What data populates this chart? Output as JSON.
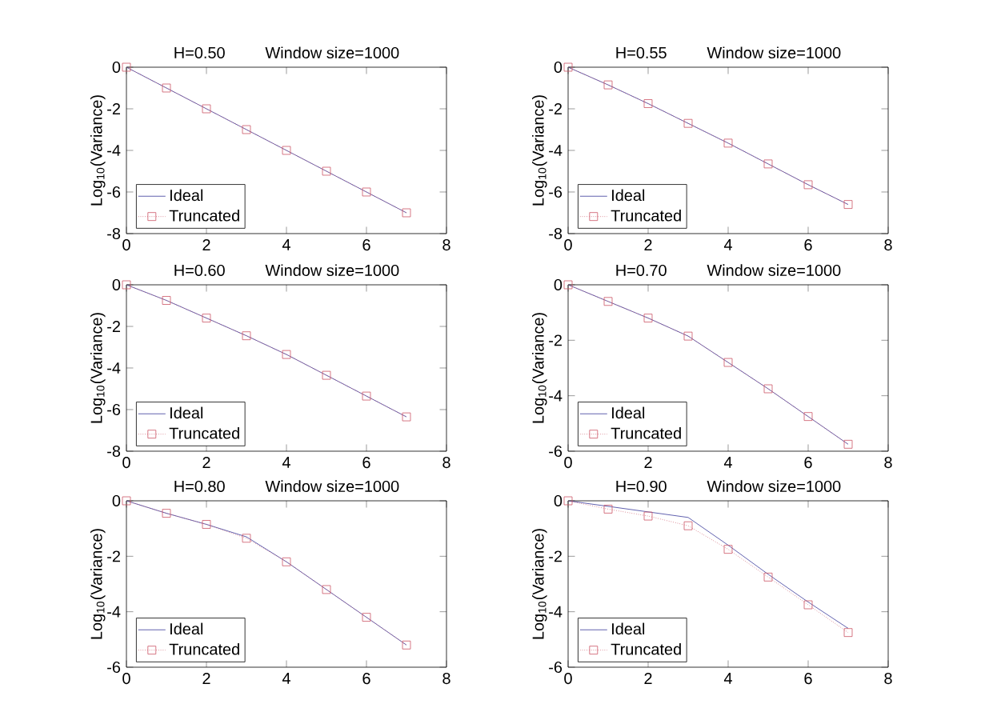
{
  "chart_data": [
    {
      "type": "line",
      "title": "H=0.50",
      "subtitle": "Window size=1000",
      "ylabel": "Log$_{10}$(Variance)",
      "x": [
        0,
        1,
        2,
        3,
        4,
        5,
        6,
        7
      ],
      "xlim": [
        0,
        8
      ],
      "xticks": [
        0,
        2,
        4,
        6,
        8
      ],
      "ylim": [
        -8,
        0
      ],
      "yticks": [
        -8,
        -6,
        -4,
        -2,
        0
      ],
      "legend": "bottom left",
      "grid": false,
      "series": [
        {
          "name": "Ideal",
          "color": "#3a3a9a",
          "marker": "none",
          "line_style": "solid",
          "values": [
            0,
            -1,
            -2,
            -3,
            -4,
            -5,
            -6,
            -7
          ]
        },
        {
          "name": "Truncated",
          "color": "#cc5566",
          "marker": "square",
          "line_style": "dotted",
          "values": [
            0,
            -1,
            -2,
            -3,
            -4,
            -5,
            -6,
            -7
          ]
        }
      ]
    },
    {
      "type": "line",
      "title": "H=0.55",
      "subtitle": "Window size=1000",
      "ylabel": "Log$_{10}$(Variance)",
      "x": [
        0,
        1,
        2,
        3,
        4,
        5,
        6,
        7
      ],
      "xlim": [
        0,
        8
      ],
      "xticks": [
        0,
        2,
        4,
        6,
        8
      ],
      "ylim": [
        -8,
        0
      ],
      "yticks": [
        -8,
        -6,
        -4,
        -2,
        0
      ],
      "legend": "bottom left",
      "grid": false,
      "series": [
        {
          "name": "Ideal",
          "color": "#3a3a9a",
          "marker": "none",
          "line_style": "solid",
          "values": [
            0,
            -0.85,
            -1.75,
            -2.7,
            -3.65,
            -4.65,
            -5.65,
            -6.6
          ]
        },
        {
          "name": "Truncated",
          "color": "#cc5566",
          "marker": "square",
          "line_style": "dotted",
          "values": [
            0,
            -0.85,
            -1.75,
            -2.7,
            -3.65,
            -4.65,
            -5.65,
            -6.6
          ]
        }
      ]
    },
    {
      "type": "line",
      "title": "H=0.60",
      "subtitle": "Window size=1000",
      "ylabel": "Log$_{10}$(Variance)",
      "x": [
        0,
        1,
        2,
        3,
        4,
        5,
        6,
        7
      ],
      "xlim": [
        0,
        8
      ],
      "xticks": [
        0,
        2,
        4,
        6,
        8
      ],
      "ylim": [
        -8,
        0
      ],
      "yticks": [
        -8,
        -6,
        -4,
        -2,
        0
      ],
      "legend": "bottom left",
      "grid": false,
      "series": [
        {
          "name": "Ideal",
          "color": "#3a3a9a",
          "marker": "none",
          "line_style": "solid",
          "values": [
            0,
            -0.75,
            -1.6,
            -2.45,
            -3.35,
            -4.35,
            -5.35,
            -6.35
          ]
        },
        {
          "name": "Truncated",
          "color": "#cc5566",
          "marker": "square",
          "line_style": "dotted",
          "values": [
            0,
            -0.75,
            -1.6,
            -2.45,
            -3.35,
            -4.35,
            -5.35,
            -6.35
          ]
        }
      ]
    },
    {
      "type": "line",
      "title": "H=0.70",
      "subtitle": "Window size=1000",
      "ylabel": "Log$_{10}$(Variance)",
      "x": [
        0,
        1,
        2,
        3,
        4,
        5,
        6,
        7
      ],
      "xlim": [
        0,
        8
      ],
      "xticks": [
        0,
        2,
        4,
        6,
        8
      ],
      "ylim": [
        -6,
        0
      ],
      "yticks": [
        -6,
        -4,
        -2,
        0
      ],
      "legend": "bottom left",
      "grid": false,
      "series": [
        {
          "name": "Ideal",
          "color": "#3a3a9a",
          "marker": "none",
          "line_style": "solid",
          "values": [
            0,
            -0.6,
            -1.2,
            -1.85,
            -2.8,
            -3.75,
            -4.75,
            -5.75
          ]
        },
        {
          "name": "Truncated",
          "color": "#cc5566",
          "marker": "square",
          "line_style": "dotted",
          "values": [
            0,
            -0.6,
            -1.2,
            -1.85,
            -2.8,
            -3.75,
            -4.75,
            -5.75
          ]
        }
      ]
    },
    {
      "type": "line",
      "title": "H=0.80",
      "subtitle": "Window size=1000",
      "ylabel": "Log$_{10}$(Variance)",
      "x": [
        0,
        1,
        2,
        3,
        4,
        5,
        6,
        7
      ],
      "xlim": [
        0,
        8
      ],
      "xticks": [
        0,
        2,
        4,
        6,
        8
      ],
      "ylim": [
        -6,
        0
      ],
      "yticks": [
        -6,
        -4,
        -2,
        0
      ],
      "legend": "bottom left",
      "grid": false,
      "series": [
        {
          "name": "Ideal",
          "color": "#3a3a9a",
          "marker": "none",
          "line_style": "solid",
          "values": [
            0,
            -0.45,
            -0.85,
            -1.3,
            -2.2,
            -3.2,
            -4.2,
            -5.2
          ]
        },
        {
          "name": "Truncated",
          "color": "#cc5566",
          "marker": "square",
          "line_style": "dotted",
          "values": [
            0,
            -0.45,
            -0.85,
            -1.35,
            -2.2,
            -3.2,
            -4.2,
            -5.2
          ]
        }
      ]
    },
    {
      "type": "line",
      "title": "H=0.90",
      "subtitle": "Window size=1000",
      "ylabel": "Log$_{10}$(Variance)",
      "x": [
        0,
        1,
        2,
        3,
        4,
        5,
        6,
        7
      ],
      "xlim": [
        0,
        8
      ],
      "xticks": [
        0,
        2,
        4,
        6,
        8
      ],
      "ylim": [
        -6,
        0
      ],
      "yticks": [
        -6,
        -4,
        -2,
        0
      ],
      "legend": "bottom left",
      "grid": false,
      "series": [
        {
          "name": "Ideal",
          "color": "#3a3a9a",
          "marker": "none",
          "line_style": "solid",
          "values": [
            0,
            -0.2,
            -0.4,
            -0.6,
            -1.6,
            -2.65,
            -3.65,
            -4.6
          ]
        },
        {
          "name": "Truncated",
          "color": "#cc5566",
          "marker": "square",
          "line_style": "dotted",
          "values": [
            0,
            -0.3,
            -0.55,
            -0.9,
            -1.75,
            -2.75,
            -3.75,
            -4.75
          ]
        }
      ]
    }
  ]
}
